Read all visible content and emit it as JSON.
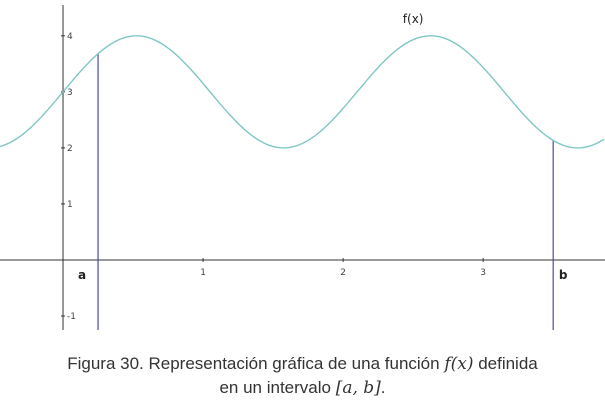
{
  "chart_data": {
    "type": "line",
    "function_label": "f(x)",
    "xlim": [
      -0.45,
      3.87
    ],
    "ylim": [
      -1.25,
      4.55
    ],
    "x_ticks": [
      1,
      2,
      3
    ],
    "y_ticks": [
      -1,
      1,
      2,
      3,
      4
    ],
    "series": [
      {
        "name": "f(x)",
        "curve": {
          "amplitude": 1,
          "midline": 3,
          "period": 2.1,
          "phase_shift": 0.525
        },
        "color": "#7fc7c4"
      }
    ],
    "bounds": [
      {
        "label": "a",
        "x": 0.25
      },
      {
        "label": "b",
        "x": 3.5
      }
    ],
    "bound_color": "#4a4aa8",
    "axis_color": "#333333",
    "grid": false
  },
  "caption": {
    "line1_prefix": "Figura 30. Representación gráfica de una función ",
    "line1_math": "f(x)",
    "line1_suffix": " definida",
    "line2_prefix": "en un intervalo ",
    "line2_math": "[a, b]",
    "line2_suffix": "."
  }
}
